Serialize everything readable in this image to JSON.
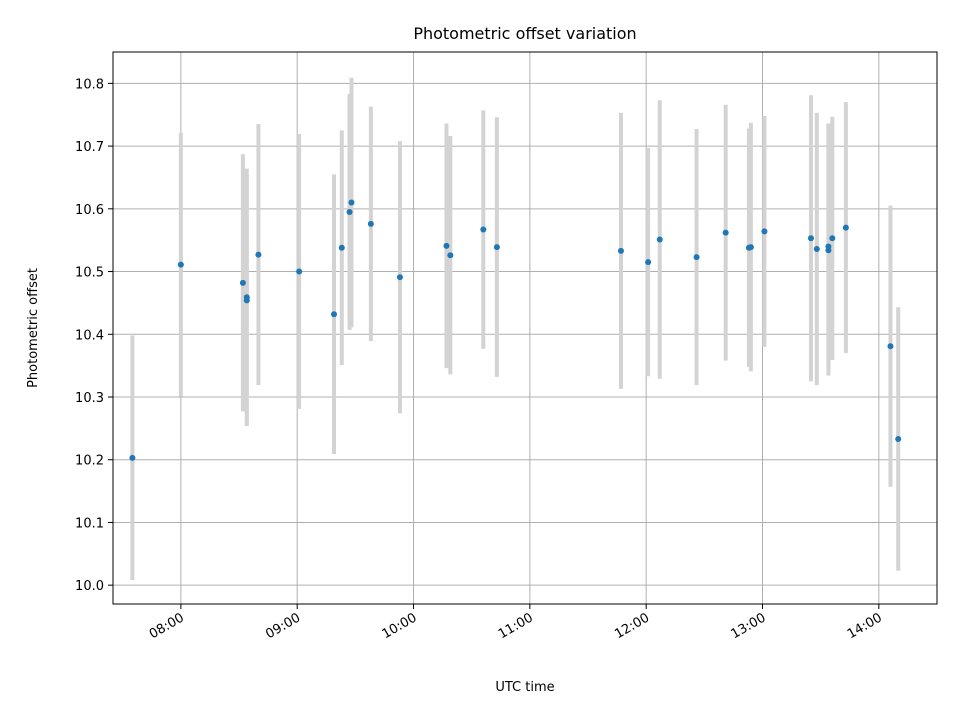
{
  "chart_data": {
    "type": "scatter",
    "title": "Photometric offset variation",
    "xlabel": "UTC time",
    "ylabel": "Photometric offset",
    "x_ticks": [
      "08:00",
      "09:00",
      "10:00",
      "11:00",
      "12:00",
      "13:00",
      "14:00"
    ],
    "y_ticks": [
      "10.0",
      "10.1",
      "10.2",
      "10.3",
      "10.4",
      "10.5",
      "10.6",
      "10.7",
      "10.8"
    ],
    "xlim": [
      "07:25",
      "14:30"
    ],
    "ylim": [
      9.97,
      10.85
    ],
    "grid": true,
    "colors": {
      "point": "#1f77b4",
      "errorbar": "#d3d3d3",
      "grid": "#b0b0b0"
    },
    "points": [
      {
        "x": "07:35",
        "y": 10.203,
        "err": 0.195
      },
      {
        "x": "08:00",
        "y": 10.511,
        "err": 0.21
      },
      {
        "x": "08:32",
        "y": 10.482,
        "err": 0.205
      },
      {
        "x": "08:34",
        "y": 10.459,
        "err": 0.205
      },
      {
        "x": "08:34",
        "y": 10.454,
        "err": 0.2
      },
      {
        "x": "08:40",
        "y": 10.527,
        "err": 0.208
      },
      {
        "x": "09:01",
        "y": 10.5,
        "err": 0.219
      },
      {
        "x": "09:19",
        "y": 10.432,
        "err": 0.223
      },
      {
        "x": "09:23",
        "y": 10.538,
        "err": 0.187
      },
      {
        "x": "09:27",
        "y": 10.595,
        "err": 0.188
      },
      {
        "x": "09:28",
        "y": 10.61,
        "err": 0.199
      },
      {
        "x": "09:38",
        "y": 10.576,
        "err": 0.187
      },
      {
        "x": "09:53",
        "y": 10.491,
        "err": 0.217
      },
      {
        "x": "10:17",
        "y": 10.541,
        "err": 0.195
      },
      {
        "x": "10:19",
        "y": 10.526,
        "err": 0.19
      },
      {
        "x": "10:36",
        "y": 10.567,
        "err": 0.19
      },
      {
        "x": "10:43",
        "y": 10.539,
        "err": 0.207
      },
      {
        "x": "11:47",
        "y": 10.533,
        "err": 0.22
      },
      {
        "x": "12:01",
        "y": 10.515,
        "err": 0.182
      },
      {
        "x": "12:07",
        "y": 10.551,
        "err": 0.222
      },
      {
        "x": "12:26",
        "y": 10.523,
        "err": 0.204
      },
      {
        "x": "12:41",
        "y": 10.562,
        "err": 0.204
      },
      {
        "x": "12:53",
        "y": 10.538,
        "err": 0.19
      },
      {
        "x": "12:54",
        "y": 10.539,
        "err": 0.198
      },
      {
        "x": "13:01",
        "y": 10.564,
        "err": 0.184
      },
      {
        "x": "13:25",
        "y": 10.553,
        "err": 0.228
      },
      {
        "x": "13:28",
        "y": 10.536,
        "err": 0.217
      },
      {
        "x": "13:34",
        "y": 10.54,
        "err": 0.196
      },
      {
        "x": "13:34",
        "y": 10.534,
        "err": 0.2
      },
      {
        "x": "13:36",
        "y": 10.553,
        "err": 0.194
      },
      {
        "x": "13:43",
        "y": 10.57,
        "err": 0.2
      },
      {
        "x": "14:06",
        "y": 10.381,
        "err": 0.224
      },
      {
        "x": "14:10",
        "y": 10.233,
        "err": 0.21
      }
    ]
  }
}
